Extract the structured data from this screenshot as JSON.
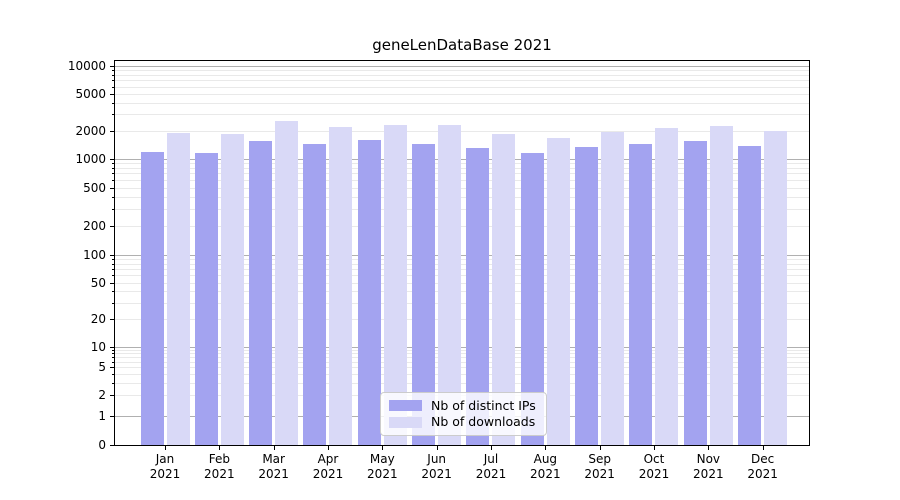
{
  "title": "geneLenDataBase 2021",
  "chart_data": {
    "type": "bar",
    "title": "geneLenDataBase 2021",
    "categories": [
      "Jan 2021",
      "Feb 2021",
      "Mar 2021",
      "Apr 2021",
      "May 2021",
      "Jun 2021",
      "Jul 2021",
      "Aug 2021",
      "Sep 2021",
      "Oct 2021",
      "Nov 2021",
      "Dec 2021"
    ],
    "series": [
      {
        "name": "Nb of distinct IPs",
        "color": "#a3a3f0",
        "values": [
          1170,
          1140,
          1540,
          1430,
          1580,
          1420,
          1290,
          1160,
          1330,
          1440,
          1560,
          1380
        ]
      },
      {
        "name": "Nb of downloads",
        "color": "#d9d9f7",
        "values": [
          1870,
          1820,
          2550,
          2200,
          2320,
          2300,
          1850,
          1680,
          1940,
          2120,
          2250,
          2000
        ]
      }
    ],
    "xlabel": "",
    "ylabel": "",
    "yscale": "symlog",
    "y_ticks": [
      0,
      1,
      2,
      5,
      10,
      20,
      50,
      100,
      200,
      500,
      1000,
      2000,
      5000,
      10000
    ],
    "ylim": [
      0,
      11600
    ],
    "grid": "both",
    "legend_position": "lower center"
  },
  "colors": {
    "major_grid": "#b0b0b0",
    "minor_grid": "#e9e9e9",
    "spine": "#000000",
    "background": "#ffffff"
  }
}
